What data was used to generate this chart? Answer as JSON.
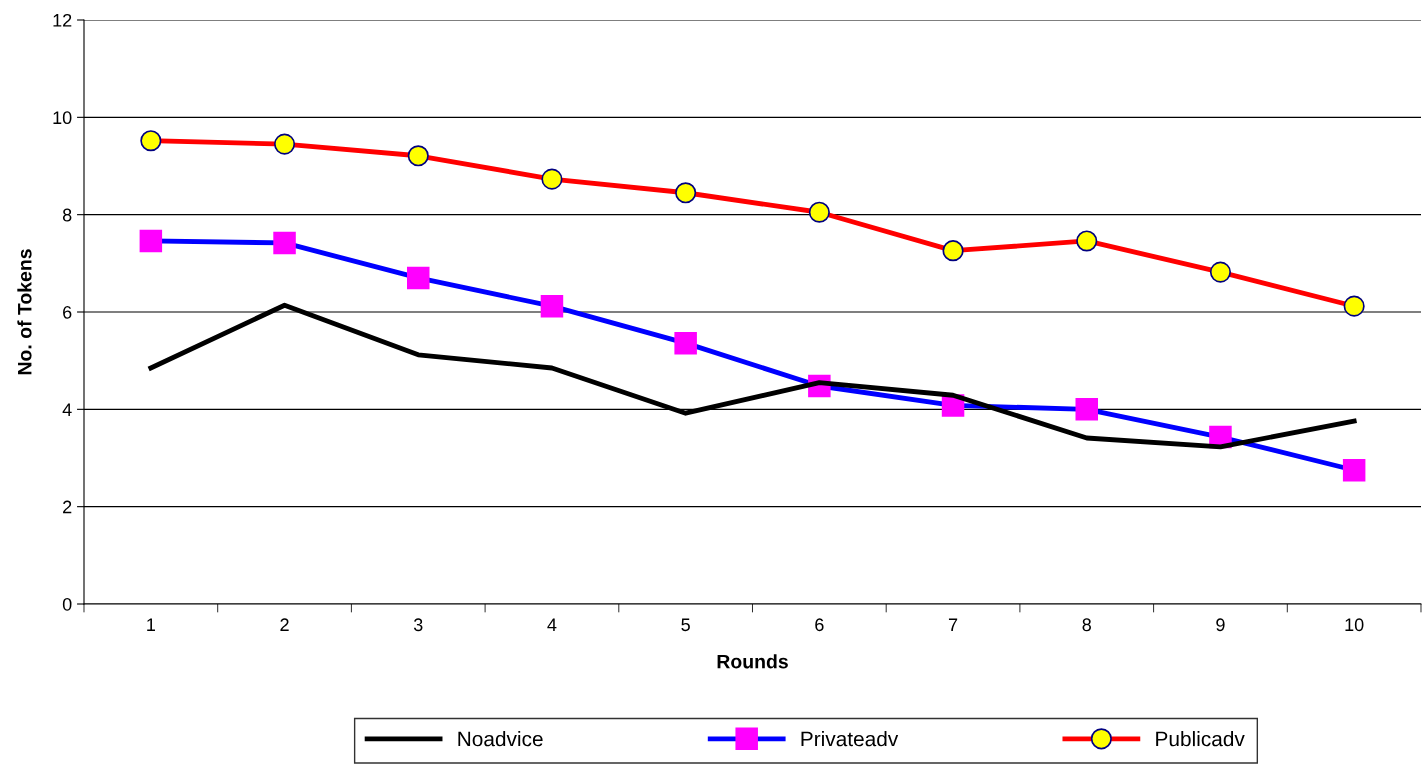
{
  "chart_data": {
    "type": "line",
    "xlabel": "Rounds",
    "ylabel": "No. of Tokens",
    "categories": [
      "1",
      "2",
      "3",
      "4",
      "5",
      "6",
      "7",
      "8",
      "9",
      "10"
    ],
    "ylim": [
      0,
      12
    ],
    "yticks": [
      0,
      2,
      4,
      6,
      8,
      10,
      12
    ],
    "grid": "y",
    "legend": "bottom",
    "series": [
      {
        "name": "Noadvice",
        "color": "#000000",
        "marker": "none",
        "values": [
          4.85,
          6.14,
          5.12,
          4.85,
          3.92,
          4.55,
          4.29,
          3.41,
          3.23,
          3.76
        ]
      },
      {
        "name": "Privateadv",
        "color": "#0000ff",
        "marker": "square",
        "values": [
          7.46,
          7.42,
          6.7,
          6.12,
          5.36,
          4.48,
          4.08,
          4.0,
          3.43,
          2.75
        ]
      },
      {
        "name": "Publicadv",
        "color": "#ff0000",
        "marker": "circle",
        "values": [
          9.52,
          9.45,
          9.21,
          8.73,
          8.45,
          8.05,
          7.26,
          7.46,
          6.82,
          6.12
        ]
      }
    ]
  }
}
